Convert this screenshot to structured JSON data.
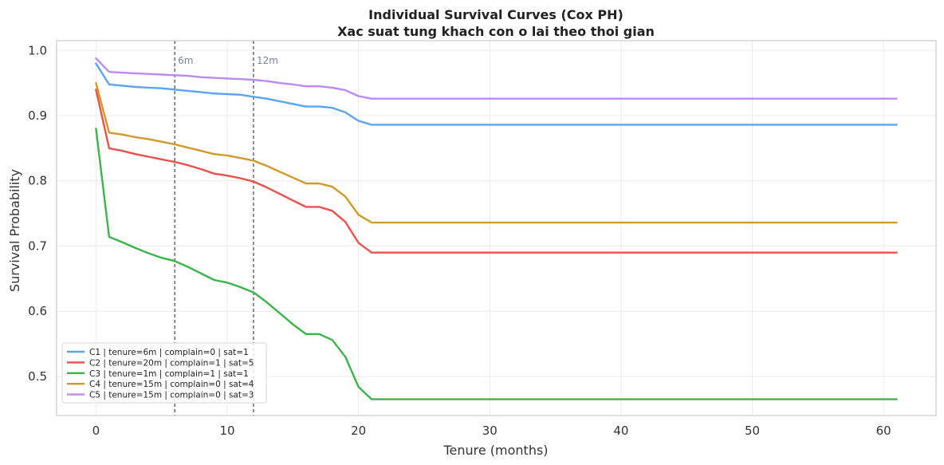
{
  "chart_data": {
    "type": "line",
    "title": "Individual Survival Curves (Cox PH)",
    "subtitle": "Xac suat tung khach con o lai theo thoi gian",
    "xlabel": "Tenure (months)",
    "ylabel": "Survival Probability",
    "xlim": [
      -3,
      64
    ],
    "ylim": [
      0.44,
      1.015
    ],
    "xticks": [
      0,
      10,
      20,
      30,
      40,
      50,
      60
    ],
    "yticks": [
      0.5,
      0.6,
      0.7,
      0.8,
      0.9,
      1.0
    ],
    "ytick_labels": [
      "0.5",
      "0.6",
      "0.7",
      "0.8",
      "0.9",
      "1.0"
    ],
    "grid": true,
    "legend_position": "lower-left",
    "vlines": [
      {
        "x": 6,
        "label": "6m"
      },
      {
        "x": 12,
        "label": "12m"
      }
    ],
    "series": [
      {
        "name": "C1 | tenure=6m | complain=0 | sat=1",
        "color": "#5aa4f5",
        "x": [
          0,
          1,
          2,
          3,
          4,
          5,
          6,
          7,
          8,
          9,
          10,
          11,
          12,
          13,
          14,
          15,
          16,
          17,
          18,
          19,
          20,
          21,
          61
        ],
        "y": [
          0.98,
          0.948,
          0.946,
          0.944,
          0.943,
          0.942,
          0.94,
          0.938,
          0.936,
          0.934,
          0.933,
          0.932,
          0.929,
          0.926,
          0.922,
          0.918,
          0.914,
          0.914,
          0.912,
          0.905,
          0.892,
          0.886,
          0.886
        ]
      },
      {
        "name": "C2 | tenure=20m | complain=1 | sat=5",
        "color": "#e8524a",
        "x": [
          0,
          1,
          2,
          3,
          4,
          5,
          6,
          7,
          8,
          9,
          10,
          11,
          12,
          13,
          14,
          15,
          16,
          17,
          18,
          19,
          20,
          21,
          61
        ],
        "y": [
          0.94,
          0.85,
          0.846,
          0.841,
          0.837,
          0.833,
          0.829,
          0.824,
          0.818,
          0.811,
          0.808,
          0.804,
          0.799,
          0.79,
          0.78,
          0.77,
          0.76,
          0.76,
          0.754,
          0.737,
          0.705,
          0.69,
          0.69
        ]
      },
      {
        "name": "C3 | tenure=1m | complain=1 | sat=1",
        "color": "#3bb54a",
        "x": [
          0,
          1,
          2,
          3,
          4,
          5,
          6,
          7,
          8,
          9,
          10,
          11,
          12,
          13,
          14,
          15,
          16,
          17,
          18,
          19,
          20,
          21,
          61
        ],
        "y": [
          0.88,
          0.714,
          0.706,
          0.697,
          0.689,
          0.682,
          0.677,
          0.668,
          0.658,
          0.648,
          0.644,
          0.637,
          0.629,
          0.614,
          0.597,
          0.58,
          0.565,
          0.565,
          0.556,
          0.53,
          0.484,
          0.465,
          0.465
        ]
      },
      {
        "name": "C4 | tenure=15m | complain=0 | sat=4",
        "color": "#d19a26",
        "x": [
          0,
          1,
          2,
          3,
          4,
          5,
          6,
          7,
          8,
          9,
          10,
          11,
          12,
          13,
          14,
          15,
          16,
          17,
          18,
          19,
          20,
          21,
          61
        ],
        "y": [
          0.95,
          0.874,
          0.871,
          0.867,
          0.864,
          0.86,
          0.856,
          0.851,
          0.846,
          0.841,
          0.839,
          0.835,
          0.831,
          0.823,
          0.814,
          0.805,
          0.796,
          0.796,
          0.791,
          0.776,
          0.748,
          0.736,
          0.736
        ]
      },
      {
        "name": "C5 | tenure=15m | complain=0 | sat=3",
        "color": "#bb8af5",
        "x": [
          0,
          1,
          2,
          3,
          4,
          5,
          6,
          7,
          8,
          9,
          10,
          11,
          12,
          13,
          14,
          15,
          16,
          17,
          18,
          19,
          20,
          21,
          61
        ],
        "y": [
          0.988,
          0.967,
          0.966,
          0.965,
          0.964,
          0.963,
          0.962,
          0.961,
          0.959,
          0.958,
          0.957,
          0.956,
          0.955,
          0.953,
          0.95,
          0.948,
          0.945,
          0.945,
          0.943,
          0.939,
          0.93,
          0.926,
          0.926
        ]
      }
    ]
  }
}
